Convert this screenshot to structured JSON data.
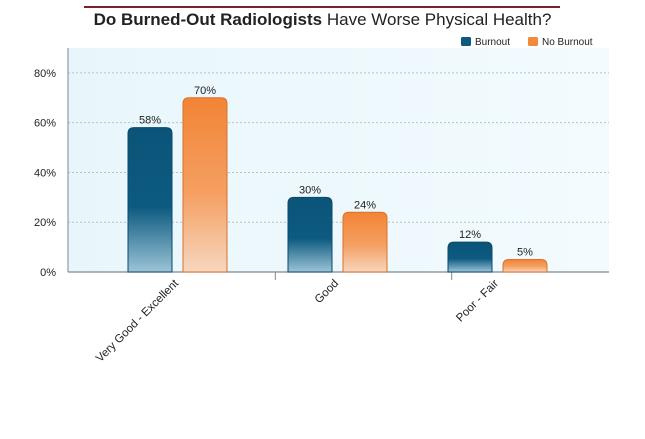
{
  "title": {
    "bold": "Do Burned-Out Radiologists",
    "rest": "Have Worse Physical Health?"
  },
  "chart_data": {
    "type": "bar",
    "title": "Do Burned-Out Radiologists Have Worse Physical Health?",
    "categories": [
      "Very Good - Excellent",
      "Good",
      "Poor - Fair"
    ],
    "series": [
      {
        "name": "Burnout",
        "values": [
          58,
          30,
          12
        ],
        "labels": [
          "58%",
          "30%",
          "12%"
        ],
        "color": "#0d5a80"
      },
      {
        "name": "No Burnout",
        "values": [
          70,
          24,
          5
        ],
        "labels": [
          "70%",
          "24%",
          "5%"
        ],
        "color": "#f28a3c"
      }
    ],
    "ylim": [
      0,
      90
    ],
    "yticks": [
      0,
      20,
      40,
      60,
      80
    ],
    "ytick_labels": [
      "0%",
      "20%",
      "40%",
      "60%",
      "80%"
    ],
    "grid": true,
    "legend_position": "top-right",
    "xlabel": "",
    "ylabel": ""
  }
}
